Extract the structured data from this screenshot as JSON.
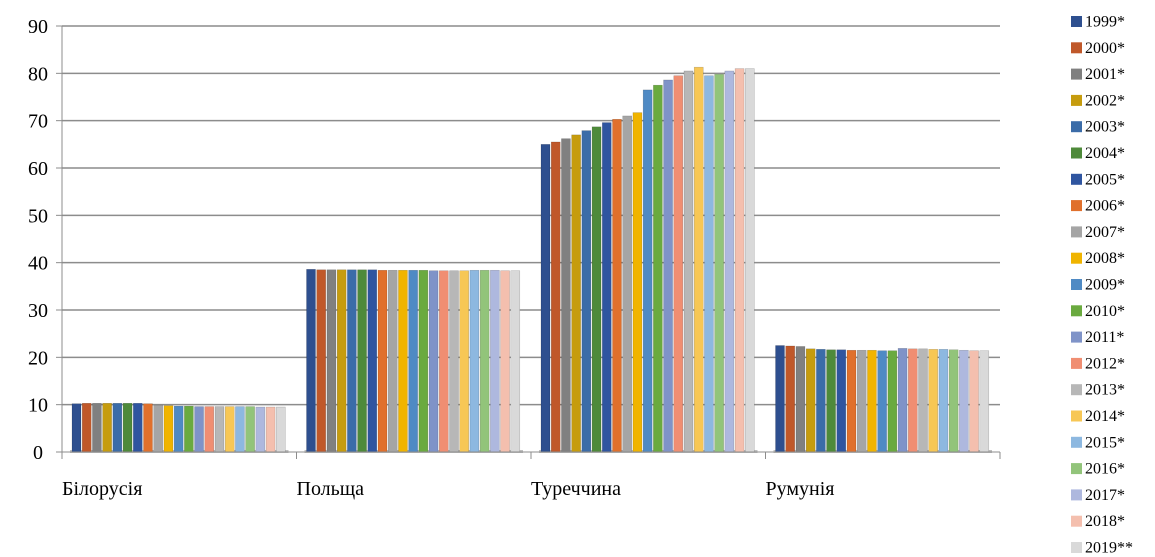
{
  "chart_data": {
    "type": "bar",
    "title": "",
    "xlabel": "",
    "ylabel": "",
    "ylim": [
      0,
      90
    ],
    "yticks": [
      "0",
      "10",
      "20",
      "30",
      "40",
      "50",
      "60",
      "70",
      "80",
      "90"
    ],
    "grid": true,
    "legend_position": "right",
    "categories": [
      "Білорусія",
      "Польща",
      "Туреччина",
      "Румунія"
    ],
    "series": [
      {
        "name": "1999*",
        "color": "#2E4F8F",
        "values": [
          10.2,
          38.6,
          65.0,
          22.5
        ]
      },
      {
        "name": "2000*",
        "color": "#C0582A",
        "values": [
          10.3,
          38.5,
          65.5,
          22.4
        ]
      },
      {
        "name": "2001*",
        "color": "#808080",
        "values": [
          10.3,
          38.5,
          66.2,
          22.3
        ]
      },
      {
        "name": "2002*",
        "color": "#C69C0E",
        "values": [
          10.3,
          38.5,
          67.0,
          21.8
        ]
      },
      {
        "name": "2003*",
        "color": "#3B6CA8",
        "values": [
          10.3,
          38.5,
          67.9,
          21.7
        ]
      },
      {
        "name": "2004*",
        "color": "#4E8A3A",
        "values": [
          10.3,
          38.5,
          68.7,
          21.6
        ]
      },
      {
        "name": "2005*",
        "color": "#2F55A0",
        "values": [
          10.3,
          38.5,
          69.6,
          21.6
        ]
      },
      {
        "name": "2006*",
        "color": "#E0702C",
        "values": [
          10.2,
          38.4,
          70.3,
          21.5
        ]
      },
      {
        "name": "2007*",
        "color": "#A5A5A5",
        "values": [
          9.9,
          38.4,
          71.0,
          21.5
        ]
      },
      {
        "name": "2008*",
        "color": "#F0B400",
        "values": [
          9.8,
          38.4,
          71.7,
          21.5
        ]
      },
      {
        "name": "2009*",
        "color": "#4F8AC4",
        "values": [
          9.7,
          38.4,
          76.5,
          21.4
        ]
      },
      {
        "name": "2010*",
        "color": "#6AAA3F",
        "values": [
          9.7,
          38.4,
          77.5,
          21.4
        ]
      },
      {
        "name": "2011*",
        "color": "#7F93C8",
        "values": [
          9.6,
          38.3,
          78.6,
          21.9
        ]
      },
      {
        "name": "2012*",
        "color": "#F08E72",
        "values": [
          9.6,
          38.3,
          79.5,
          21.8
        ]
      },
      {
        "name": "2013*",
        "color": "#B7B7B7",
        "values": [
          9.6,
          38.3,
          80.5,
          21.8
        ]
      },
      {
        "name": "2014*",
        "color": "#F7C755",
        "values": [
          9.6,
          38.3,
          81.3,
          21.7
        ]
      },
      {
        "name": "2015*",
        "color": "#8DB8E0",
        "values": [
          9.6,
          38.4,
          79.5,
          21.7
        ]
      },
      {
        "name": "2016*",
        "color": "#92C47A",
        "values": [
          9.6,
          38.4,
          79.8,
          21.6
        ]
      },
      {
        "name": "2017*",
        "color": "#AEB8DE",
        "values": [
          9.5,
          38.4,
          80.5,
          21.5
        ]
      },
      {
        "name": "2018*",
        "color": "#F4BFAE",
        "values": [
          9.5,
          38.3,
          81.0,
          21.4
        ]
      },
      {
        "name": "2019**",
        "color": "#D9D9D9",
        "values": [
          9.5,
          38.3,
          81.0,
          21.4
        ]
      }
    ]
  }
}
